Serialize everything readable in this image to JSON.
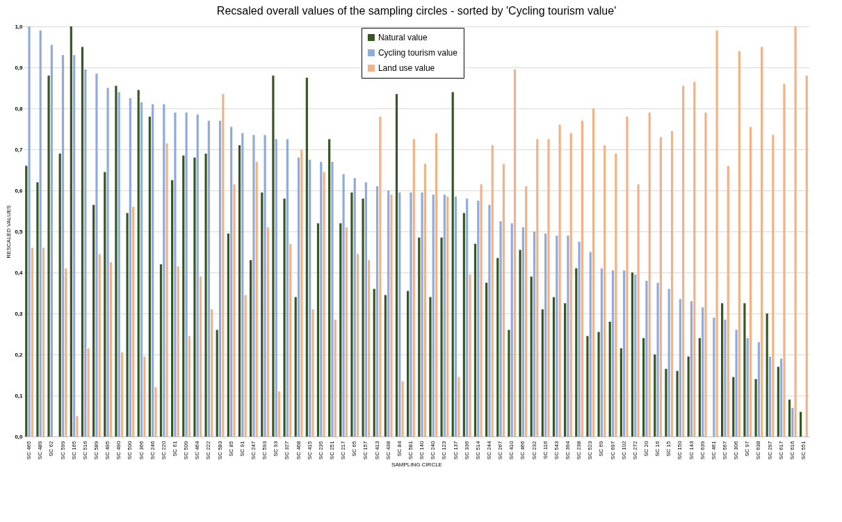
{
  "chart_data": {
    "type": "bar",
    "title": "Recsaled overall values of the sampling circles - sorted by 'Cycling tourism value'",
    "xlabel": "SAMPLING CIRCLE",
    "ylabel": "RESCALED VALUES",
    "categories": [
      "SC 465",
      "SC 489",
      "SC 62",
      "SC 599",
      "SC 165",
      "SC 516",
      "SC 589",
      "SC 495",
      "SC 490",
      "SC 500",
      "SC 366",
      "SC 246",
      "SC 220",
      "SC 61",
      "SC 509",
      "SC 464",
      "SC 222",
      "SC 583",
      "SC 85",
      "SC 91",
      "SC 247",
      "SC 593",
      "SC 93",
      "SC 327",
      "SC 468",
      "SC 415",
      "SC 235",
      "SC 251",
      "SC 217",
      "SC 65",
      "SC 157",
      "SC 413",
      "SC 438",
      "SC 84",
      "SC 581",
      "SC 140",
      "SC 240",
      "SC 123",
      "SC 137",
      "SC 336",
      "SC 514",
      "SC 244",
      "SC 267",
      "SC 410",
      "SC 466",
      "SC 232",
      "SC 116",
      "SC 543",
      "SC 394",
      "SC 238",
      "SC 523",
      "SC 69",
      "SC 697",
      "SC 102",
      "SC 272",
      "SC 20",
      "SC 16",
      "SC 15",
      "SC 150",
      "SC 143",
      "SC 639",
      "SC 461",
      "SC 567",
      "SC 306",
      "SC 97",
      "SC 638",
      "SC 297",
      "SC 617",
      "SC 616",
      "SC 551"
    ],
    "series": [
      {
        "name": "Natural value",
        "color": "#375623",
        "values": [
          0.66,
          0.62,
          0.88,
          0.69,
          1.0,
          0.95,
          0.565,
          0.645,
          0.855,
          0.545,
          0.845,
          0.78,
          0.42,
          0.625,
          0.685,
          0.68,
          0.69,
          0.26,
          0.495,
          0.71,
          0.43,
          0.595,
          0.88,
          0.58,
          0.34,
          0.875,
          0.52,
          0.725,
          0.52,
          0.595,
          0.58,
          0.36,
          0.345,
          0.835,
          0.355,
          0.485,
          0.34,
          0.485,
          0.84,
          0.545,
          0.47,
          0.375,
          0.435,
          0.26,
          0.455,
          0.39,
          0.31,
          0.34,
          0.325,
          0.41,
          0.245,
          0.255,
          0.28,
          0.215,
          0.4,
          0.24,
          0.2,
          0.165,
          0.16,
          0.195,
          0.24,
          0,
          0.325,
          0.145,
          0.325,
          0.14,
          0.3,
          0.17,
          0.09,
          0.06
        ]
      },
      {
        "name": "Cycling tourism value",
        "color": "#8faadc",
        "values": [
          1.0,
          0.99,
          0.955,
          0.93,
          0.93,
          0.895,
          0.885,
          0.85,
          0.84,
          0.825,
          0.815,
          0.81,
          0.81,
          0.79,
          0.79,
          0.785,
          0.77,
          0.77,
          0.755,
          0.74,
          0.735,
          0.735,
          0.725,
          0.725,
          0.68,
          0.675,
          0.67,
          0.67,
          0.64,
          0.63,
          0.62,
          0.61,
          0.6,
          0.595,
          0.595,
          0.595,
          0.59,
          0.59,
          0.585,
          0.58,
          0.575,
          0.565,
          0.525,
          0.52,
          0.51,
          0.5,
          0.495,
          0.49,
          0.49,
          0.475,
          0.45,
          0.41,
          0.405,
          0.405,
          0.395,
          0.38,
          0.375,
          0.36,
          0.335,
          0.33,
          0.315,
          0.29,
          0.285,
          0.26,
          0.24,
          0.23,
          0.195,
          0.19,
          0.07,
          0
        ]
      },
      {
        "name": "Land use value",
        "color": "#f4b183",
        "values": [
          0.46,
          0.46,
          0,
          0.41,
          0.05,
          0.215,
          0.445,
          0.425,
          0.205,
          0.56,
          0.195,
          0.12,
          0.715,
          0.415,
          0.245,
          0.39,
          0.31,
          0.835,
          0.615,
          0.345,
          0.67,
          0.51,
          0.11,
          0.47,
          0.7,
          0.31,
          0.645,
          0.285,
          0.51,
          0.445,
          0.43,
          0.78,
          0.59,
          0.135,
          0.725,
          0.665,
          0.74,
          0.585,
          0.145,
          0.395,
          0.615,
          0.71,
          0.665,
          0.895,
          0.61,
          0.725,
          0.725,
          0.76,
          0.74,
          0.77,
          0.8,
          0.71,
          0.69,
          0.78,
          0.615,
          0.79,
          0.73,
          0.745,
          0.855,
          0.865,
          0.79,
          0.99,
          0.66,
          0.94,
          0.755,
          0.95,
          0.735,
          0.86,
          1.0,
          0.88
        ]
      }
    ],
    "ylim": [
      0,
      1
    ],
    "yticks": [
      {
        "value": 0,
        "label": "0,0"
      },
      {
        "value": 0.1,
        "label": "0,1"
      },
      {
        "value": 0.2,
        "label": "0,2"
      },
      {
        "value": 0.3,
        "label": "0,3"
      },
      {
        "value": 0.4,
        "label": "0,4"
      },
      {
        "value": 0.5,
        "label": "0,5"
      },
      {
        "value": 0.6,
        "label": "0,6"
      },
      {
        "value": 0.7,
        "label": "0,7"
      },
      {
        "value": 0.8,
        "label": "0,8"
      },
      {
        "value": 0.9,
        "label": "0,9"
      },
      {
        "value": 1,
        "label": "1,0"
      }
    ],
    "grid": "y",
    "legend": "top"
  }
}
